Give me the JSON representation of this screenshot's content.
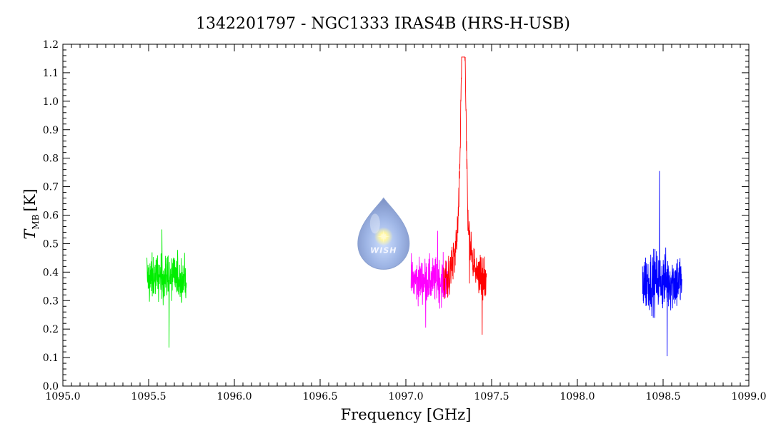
{
  "chart_data": {
    "type": "line",
    "title": "1342201797 - NGC1333 IRAS4B (HRS-H-USB)",
    "xlabel": "Frequency [GHz]",
    "ylabel_main": "T",
    "ylabel_sub": "MB",
    "ylabel_unit": "[K]",
    "xlim": [
      1095.0,
      1099.0
    ],
    "ylim": [
      0.0,
      1.2
    ],
    "x_ticks": [
      "1095.0",
      "1095.5",
      "1096.0",
      "1096.5",
      "1097.0",
      "1097.5",
      "1098.0",
      "1098.5",
      "1099.0"
    ],
    "y_ticks": [
      "0.0",
      "0.1",
      "0.2",
      "0.3",
      "0.4",
      "0.5",
      "0.6",
      "0.7",
      "0.8",
      "0.9",
      "1.0",
      "1.1",
      "1.2"
    ],
    "grid": false,
    "series": [
      {
        "color": "#00ee00",
        "x_range": [
          1095.49,
          1095.72
        ],
        "baseline": 0.38,
        "noise": 0.08,
        "min": 0.135,
        "max": 0.55,
        "peak": null
      },
      {
        "color": "#ff00ff",
        "x_range": [
          1097.03,
          1097.25
        ],
        "baseline": 0.37,
        "noise": 0.075,
        "min": 0.205,
        "max": 0.545,
        "peak": null
      },
      {
        "color": "#ff0000",
        "x_range": [
          1097.22,
          1097.47
        ],
        "baseline": 0.36,
        "noise": 0.07,
        "min": 0.18,
        "max": 1.155,
        "peak": {
          "center": 1097.335,
          "amplitude": 0.78,
          "width": 0.018,
          "wing_amplitude": 0.22,
          "wing_width": 0.06
        }
      },
      {
        "color": "#0000ff",
        "x_range": [
          1098.38,
          1098.61
        ],
        "baseline": 0.37,
        "noise": 0.1,
        "min": 0.105,
        "max": 0.755,
        "peak": null
      }
    ]
  },
  "logo": {
    "text": "WISH",
    "icon": "water-drop-logo-icon",
    "x_center": 1096.87,
    "y_center": 0.5
  }
}
